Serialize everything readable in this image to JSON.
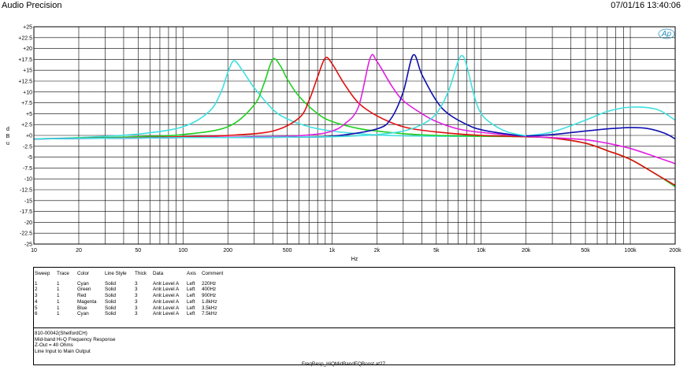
{
  "header": {
    "app_title": "Audio Precision",
    "timestamp": "07/01/16 13:40:06"
  },
  "logo_text": "Ap",
  "chart_data": {
    "type": "line",
    "title": "",
    "xlabel": "Hz",
    "ylabel": "d B u",
    "x_scale": "log",
    "xlim": [
      10,
      200000
    ],
    "ylim": [
      -25,
      25
    ],
    "x_ticks": [
      {
        "v": 10,
        "label": "10"
      },
      {
        "v": 20,
        "label": "20"
      },
      {
        "v": 50,
        "label": "50"
      },
      {
        "v": 100,
        "label": "100"
      },
      {
        "v": 200,
        "label": "200"
      },
      {
        "v": 500,
        "label": "500"
      },
      {
        "v": 1000,
        "label": "1k"
      },
      {
        "v": 2000,
        "label": "2k"
      },
      {
        "v": 5000,
        "label": "5k"
      },
      {
        "v": 10000,
        "label": "10k"
      },
      {
        "v": 20000,
        "label": "20k"
      },
      {
        "v": 50000,
        "label": "50k"
      },
      {
        "v": 100000,
        "label": "100k"
      },
      {
        "v": 200000,
        "label": "200k"
      }
    ],
    "y_ticks": [
      "+25",
      "+22.5",
      "+20",
      "+17.5",
      "+15",
      "+12.5",
      "+10",
      "+7.5",
      "+5",
      "+2.5",
      "+0",
      "-2.5",
      "-5",
      "-7.5",
      "-10",
      "-12.5",
      "-15",
      "-17.5",
      "-20",
      "-22.5",
      "-25"
    ],
    "grid": true,
    "series": [
      {
        "name": "220Hz",
        "color": "#40e0e0",
        "x": [
          10,
          20,
          50,
          100,
          150,
          180,
          200,
          220,
          250,
          300,
          400,
          500,
          700,
          1000,
          1500,
          2000,
          3000,
          5000,
          10000,
          15000,
          20000,
          30000,
          50000,
          70000,
          100000,
          150000,
          200000
        ],
        "y": [
          -0.8,
          -0.5,
          0.3,
          2.0,
          5.5,
          10.0,
          14.5,
          17.2,
          15.0,
          11.0,
          6.0,
          3.8,
          2.0,
          1.0,
          0.4,
          0.1,
          -0.1,
          -0.2,
          -0.2,
          -0.2,
          -0.1,
          0.8,
          3.5,
          5.5,
          6.5,
          6.0,
          3.5
        ]
      },
      {
        "name": "400Hz",
        "color": "#20d020",
        "x": [
          10,
          20,
          50,
          100,
          200,
          300,
          350,
          400,
          450,
          500,
          600,
          800,
          1000,
          1500,
          2000,
          3000,
          5000,
          10000,
          20000,
          30000,
          50000,
          70000,
          100000,
          150000,
          200000
        ],
        "y": [
          -0.8,
          -0.6,
          -0.3,
          0.2,
          2.0,
          7.0,
          12.0,
          17.5,
          16.0,
          13.0,
          9.0,
          5.0,
          3.2,
          1.6,
          1.0,
          0.4,
          0.0,
          -0.2,
          -0.3,
          -0.6,
          -1.8,
          -3.5,
          -5.5,
          -9.0,
          -11.8
        ]
      },
      {
        "name": "900Hz",
        "color": "#e01010",
        "x": [
          10,
          20,
          50,
          100,
          200,
          400,
          600,
          700,
          800,
          900,
          1000,
          1200,
          1500,
          2000,
          3000,
          5000,
          10000,
          20000,
          30000,
          50000,
          70000,
          100000,
          150000,
          200000
        ],
        "y": [
          -0.8,
          -0.7,
          -0.5,
          -0.3,
          0.0,
          1.0,
          4.0,
          8.0,
          13.5,
          17.8,
          16.5,
          12.0,
          7.5,
          4.5,
          2.0,
          0.8,
          0.0,
          -0.3,
          -0.6,
          -1.8,
          -3.5,
          -5.5,
          -9.0,
          -11.5
        ]
      },
      {
        "name": "1.8kHz",
        "color": "#e020e0",
        "x": [
          10,
          20,
          50,
          100,
          200,
          500,
          800,
          1000,
          1200,
          1500,
          1800,
          2000,
          2500,
          3000,
          4000,
          5000,
          7000,
          10000,
          20000,
          30000,
          50000,
          70000,
          100000,
          150000,
          200000
        ],
        "y": [
          -0.8,
          -0.7,
          -0.6,
          -0.5,
          -0.4,
          -0.2,
          0.3,
          1.0,
          2.5,
          6.5,
          17.8,
          17.0,
          11.5,
          8.0,
          5.0,
          3.2,
          1.5,
          0.7,
          -0.2,
          -0.5,
          -1.0,
          -1.8,
          -3.0,
          -5.0,
          -6.5
        ]
      },
      {
        "name": "3.5kHz",
        "color": "#1010b0",
        "x": [
          10,
          20,
          50,
          100,
          200,
          500,
          1000,
          2000,
          2500,
          3000,
          3500,
          4000,
          5000,
          6000,
          8000,
          10000,
          15000,
          20000,
          30000,
          50000,
          70000,
          100000,
          130000,
          170000,
          200000
        ],
        "y": [
          -0.8,
          -0.7,
          -0.6,
          -0.5,
          -0.5,
          -0.4,
          -0.2,
          1.5,
          4.0,
          10.0,
          18.5,
          14.0,
          8.0,
          5.0,
          2.5,
          1.3,
          0.3,
          -0.1,
          0.2,
          1.0,
          1.5,
          1.8,
          1.6,
          0.5,
          -0.8
        ]
      },
      {
        "name": "7.5kHz",
        "color": "#40e0e0",
        "x": [
          10,
          20,
          50,
          100,
          200,
          500,
          1000,
          2000,
          3000,
          4000,
          5000,
          6000,
          7000,
          7500,
          8000,
          9000,
          10000,
          12000,
          15000,
          20000
        ],
        "y": [
          -0.8,
          -0.7,
          -0.6,
          -0.5,
          -0.5,
          -0.4,
          -0.3,
          0.2,
          1.0,
          2.5,
          5.0,
          10.0,
          17.0,
          18.3,
          16.0,
          9.0,
          5.0,
          2.5,
          0.8,
          -0.1
        ]
      }
    ]
  },
  "legend": {
    "columns": [
      "Sweep",
      "Trace",
      "Color",
      "Line Style",
      "Thick",
      "Data",
      "Axis",
      "Comment"
    ],
    "rows": [
      [
        "1",
        "1",
        "Cyan",
        "Solid",
        "3",
        "Anlr.Level A",
        "Left",
        "220Hz"
      ],
      [
        "2",
        "1",
        "Green",
        "Solid",
        "3",
        "Anlr.Level A",
        "Left",
        "400Hz"
      ],
      [
        "3",
        "1",
        "Red",
        "Solid",
        "3",
        "Anlr.Level A",
        "Left",
        "900Hz"
      ],
      [
        "4",
        "1",
        "Magenta",
        "Solid",
        "3",
        "Anlr.Level A",
        "Left",
        "1.8kHz"
      ],
      [
        "5",
        "1",
        "Blue",
        "Solid",
        "3",
        "Anlr.Level A",
        "Left",
        "3.5kHz"
      ],
      [
        "6",
        "1",
        "Cyan",
        "Solid",
        "3",
        "Anlr.Level A",
        "Left",
        "7.5kHz"
      ]
    ]
  },
  "notes": [
    "810-00042(ShelfordCH)",
    "Mid-band Hi-Q Frequency Response",
    "Z-Out = 40 Ohms",
    "Line Input to Main Output"
  ],
  "footer": "FreqResp_HiQMidBandEQBoost.at27"
}
